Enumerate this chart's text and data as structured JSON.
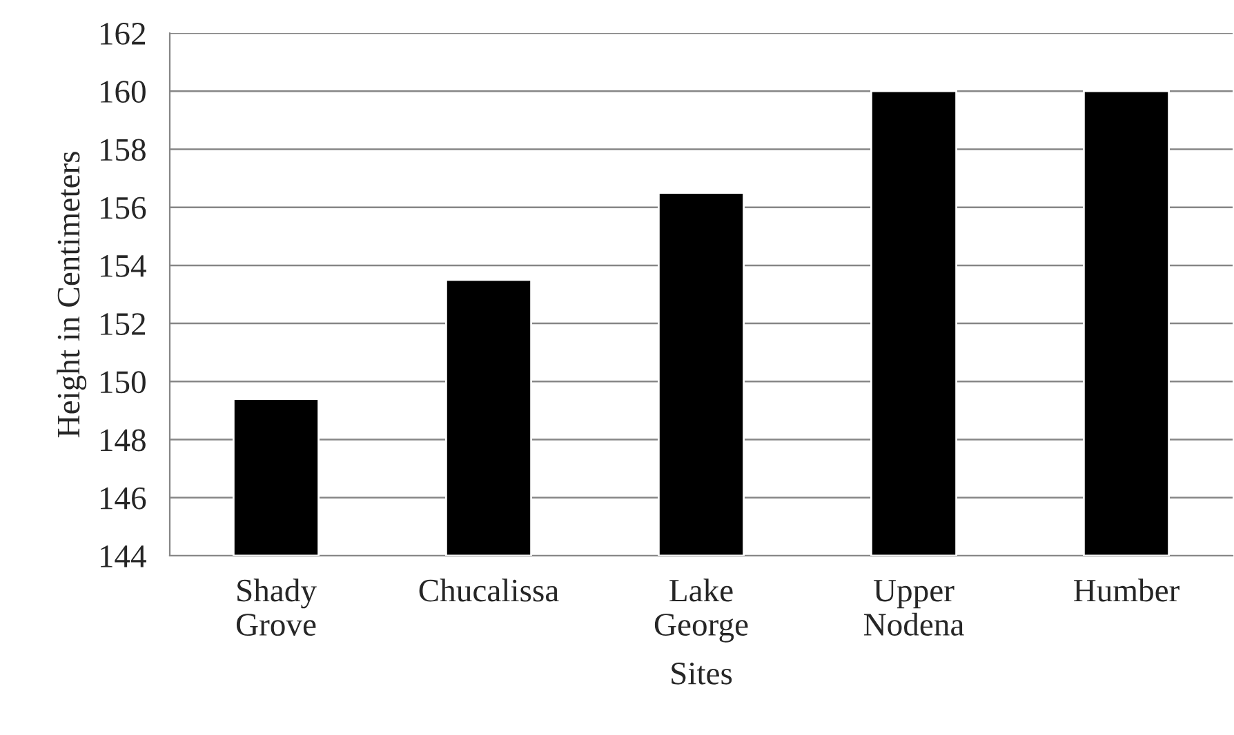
{
  "chart_data": {
    "type": "bar",
    "xlabel": "Sites",
    "ylabel": "Height in Centimeters",
    "categories": [
      "Shady\nGrove",
      "Chucalissa",
      "Lake\nGeorge",
      "Upper\nNodena",
      "Humber"
    ],
    "values": [
      149.4,
      153.5,
      156.5,
      160.0,
      160.0
    ],
    "color": "#000000",
    "ylim": [
      144,
      162
    ],
    "yticks": [
      144,
      146,
      148,
      150,
      152,
      154,
      156,
      158,
      160,
      162
    ],
    "grid": "y",
    "legend": false
  }
}
